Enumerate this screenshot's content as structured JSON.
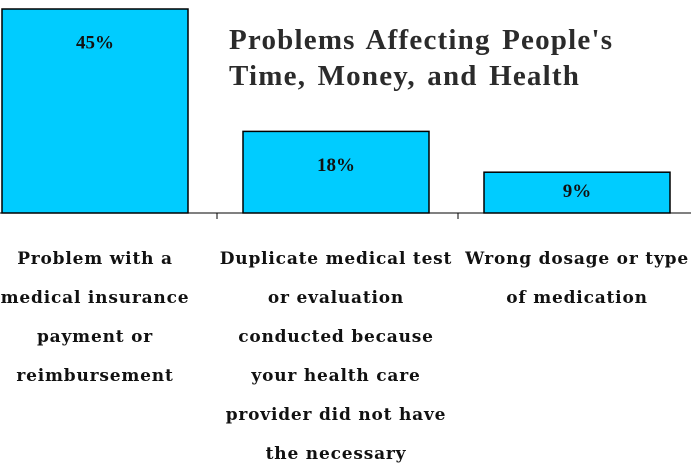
{
  "chart_data": {
    "type": "bar",
    "title": "Problems Affecting People's Time, Money, and Health",
    "categories": [
      "Problem with a medical insurance payment or reimbursement",
      "Duplicate medical test or evaluation conducted because your health care provider did not have the necessary",
      "Wrong dosage or type of medication"
    ],
    "values": [
      45,
      18,
      9
    ],
    "value_labels": [
      "45%",
      "18%",
      "9%"
    ],
    "color": "#00ccff"
  }
}
